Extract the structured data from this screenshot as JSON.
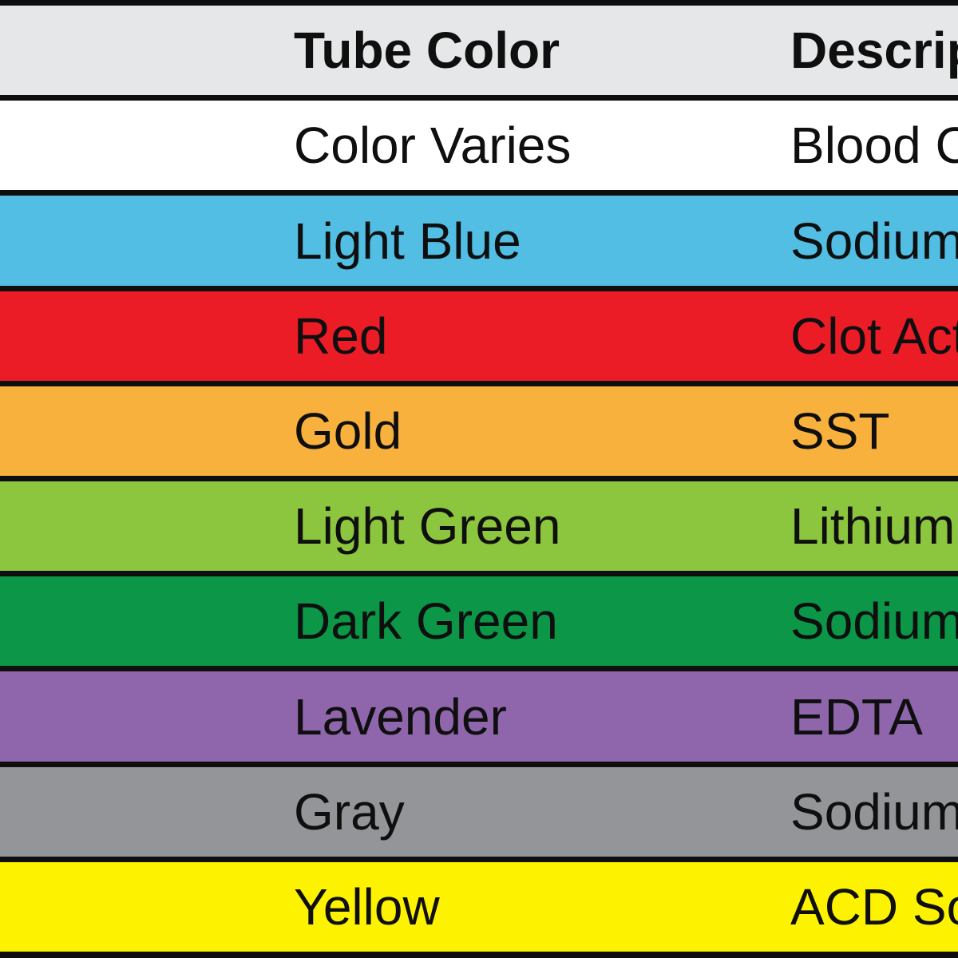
{
  "chart_data": {
    "type": "table",
    "columns": [
      "Tube Color",
      "Descrip"
    ],
    "rows": [
      {
        "tube_color": "Color Varies",
        "description": "Blood C",
        "row_bg": "#ffffff"
      },
      {
        "tube_color": "Light Blue",
        "description": "Sodium",
        "row_bg": "#52bee4"
      },
      {
        "tube_color": "Red",
        "description": "Clot Act",
        "row_bg": "#ec1c26"
      },
      {
        "tube_color": "Gold",
        "description": "SST",
        "row_bg": "#f8b13c"
      },
      {
        "tube_color": "Light Green",
        "description": "Lithium",
        "row_bg": "#8cc63e"
      },
      {
        "tube_color": "Dark Green",
        "description": "Sodium",
        "row_bg": "#0b9648"
      },
      {
        "tube_color": "Lavender",
        "description": "EDTA",
        "row_bg": "#8f66ab"
      },
      {
        "tube_color": "Gray",
        "description": "Sodium",
        "row_bg": "#939598"
      },
      {
        "tube_color": "Yellow",
        "description": "ACD So",
        "row_bg": "#fdf200"
      }
    ],
    "layout": {
      "header_bg": "#e6e7e8",
      "border_color": "#0e0e0e",
      "text_color": "#0f0f0f",
      "note_crop": "right edge of description column clipped by image bounds"
    }
  }
}
